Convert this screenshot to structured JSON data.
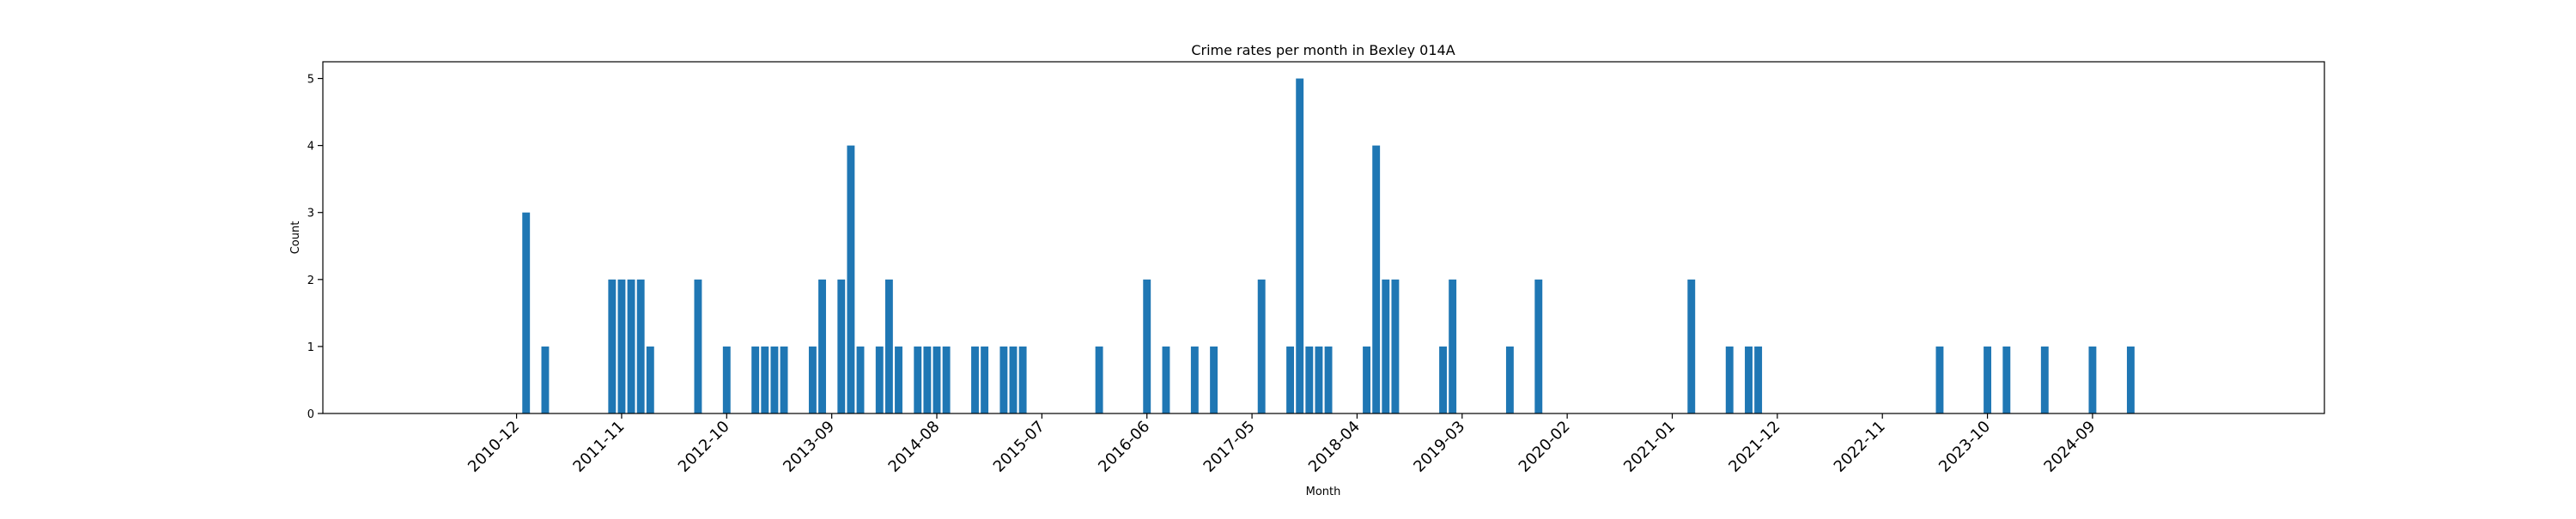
{
  "chart_data": {
    "type": "bar",
    "title": "Crime rates per month in Bexley 014A",
    "xlabel": "Month",
    "ylabel": "Count",
    "ylim": [
      0,
      5.25
    ],
    "yticks": [
      0,
      1,
      2,
      3,
      4,
      5
    ],
    "xticks": [
      "2010-12",
      "2011-11",
      "2012-10",
      "2013-09",
      "2014-08",
      "2015-07",
      "2016-06",
      "2017-05",
      "2018-04",
      "2019-03",
      "2020-02",
      "2021-01",
      "2021-12",
      "2022-11",
      "2023-10",
      "2024-09"
    ],
    "color": "#1f77b4",
    "grid": false,
    "legend": "none",
    "x": [
      "2011-01",
      "2011-03",
      "2011-10",
      "2011-11",
      "2011-12",
      "2012-01",
      "2012-02",
      "2012-07",
      "2012-10",
      "2013-01",
      "2013-02",
      "2013-03",
      "2013-04",
      "2013-07",
      "2013-08",
      "2013-10",
      "2013-11",
      "2013-12",
      "2014-02",
      "2014-03",
      "2014-04",
      "2014-06",
      "2014-07",
      "2014-08",
      "2014-09",
      "2014-12",
      "2015-01",
      "2015-03",
      "2015-04",
      "2015-05",
      "2016-01",
      "2016-06",
      "2016-08",
      "2016-11",
      "2017-01",
      "2017-06",
      "2017-09",
      "2017-10",
      "2017-11",
      "2017-12",
      "2018-01",
      "2018-05",
      "2018-06",
      "2018-07",
      "2018-08",
      "2019-01",
      "2019-02",
      "2019-08",
      "2019-11",
      "2021-03",
      "2021-07",
      "2021-09",
      "2021-10",
      "2023-05",
      "2023-10",
      "2023-12",
      "2024-04",
      "2024-09",
      "2025-01"
    ],
    "values": [
      3,
      1,
      2,
      2,
      2,
      2,
      1,
      2,
      1,
      1,
      1,
      1,
      1,
      1,
      2,
      2,
      4,
      1,
      1,
      2,
      1,
      1,
      1,
      1,
      1,
      1,
      1,
      1,
      1,
      1,
      1,
      2,
      1,
      1,
      1,
      2,
      1,
      5,
      1,
      1,
      1,
      1,
      4,
      2,
      2,
      1,
      2,
      1,
      2,
      2,
      1,
      1,
      1,
      1,
      1,
      1,
      1,
      1,
      1
    ]
  }
}
